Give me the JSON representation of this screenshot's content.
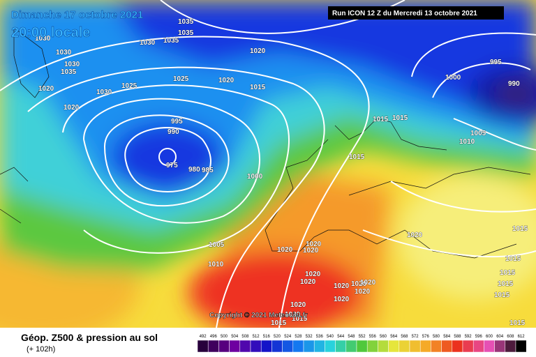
{
  "header": {
    "date": "Dimanche 17 octobre 2021",
    "time": "20:00 locale",
    "run": "Run ICON 12 Z du Mercredi 13 octobre 2021"
  },
  "isobar_labels": [
    1035,
    1035,
    1030,
    1035,
    1030,
    1030,
    1030,
    1035,
    1020,
    1025,
    1025,
    1020,
    1015,
    1030,
    1020,
    1020,
    995,
    990,
    975,
    980,
    985,
    1000,
    1015,
    1015,
    1015,
    1000,
    995,
    990,
    1005,
    1010,
    1005,
    1010,
    1020,
    1020,
    1020,
    1020,
    1015,
    1015,
    1015,
    1015,
    1015,
    1015,
    1020,
    1020,
    1020,
    1020,
    1020,
    1020,
    1020,
    1020,
    1020,
    1015,
    1015
  ],
  "copyright": "Copyright © 2021 Meteociel.fr",
  "legend": {
    "title": "Géop. Z500 & pression au sol",
    "lead": "(+ 102h)",
    "scale": [
      492,
      496,
      500,
      504,
      508,
      512,
      516,
      520,
      524,
      528,
      532,
      536,
      540,
      544,
      548,
      552,
      556,
      560,
      564,
      568,
      572,
      576,
      580,
      584,
      588,
      592,
      596,
      600,
      604,
      608,
      612
    ]
  }
}
